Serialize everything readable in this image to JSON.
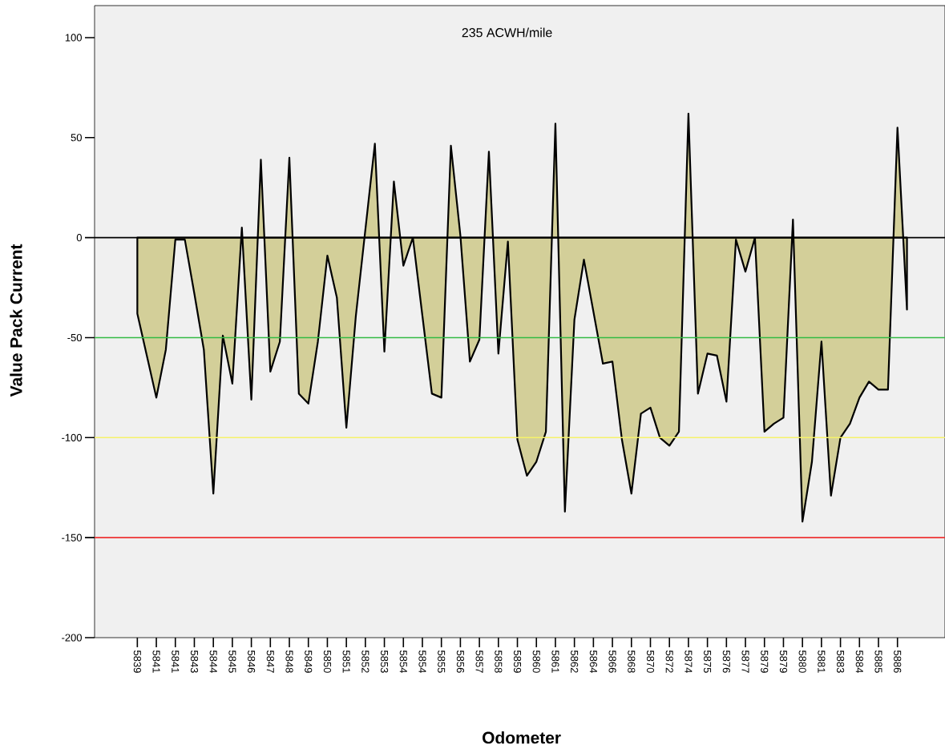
{
  "chart_data": {
    "type": "area",
    "title": "235 ACWH/mile",
    "xlabel": "Odometer",
    "ylabel": "Value Pack Current",
    "color": "#d3cf99",
    "categories": [
      "5839",
      null,
      "5841",
      null,
      "5841",
      null,
      "5843",
      null,
      "5844",
      null,
      "5845",
      null,
      "5846",
      null,
      "5847",
      null,
      "5848",
      null,
      "5849",
      null,
      "5850",
      null,
      "5851",
      null,
      "5852",
      null,
      "5853",
      null,
      "5854",
      null,
      "5854",
      null,
      "5855",
      null,
      "5856",
      null,
      "5857",
      null,
      "5858",
      null,
      "5859",
      null,
      "5860",
      null,
      "5861",
      null,
      "5862",
      null,
      "5864",
      null,
      "5866",
      null,
      "5868",
      null,
      "5870",
      null,
      "5872",
      null,
      "5874",
      null,
      "5875",
      null,
      "5876",
      null,
      "5877",
      null,
      "5879",
      null,
      "5879",
      null,
      "5880",
      null,
      "5881",
      null,
      "5883",
      null,
      "5884",
      null,
      "5885",
      null,
      "5886",
      null
    ],
    "values": [
      -38,
      -59,
      -80,
      -56,
      -1,
      -1,
      -28,
      -56,
      -128,
      -49,
      -73,
      5,
      -81,
      39,
      -67,
      -52,
      40,
      -78,
      -83,
      -52,
      -9,
      -30,
      -95,
      -39,
      4,
      47,
      -57,
      28,
      -14,
      0,
      -39,
      -78,
      -80,
      46,
      1,
      -62,
      -51,
      43,
      -58,
      -2,
      -101,
      -119,
      -112,
      -97,
      57,
      -137,
      -41,
      -11,
      -37,
      -63,
      -62,
      -101,
      -128,
      -88,
      -85,
      -100,
      -104,
      -97,
      62,
      -78,
      -58,
      -59,
      -82,
      -1,
      -17,
      0,
      -97,
      -93,
      -90,
      9,
      -142,
      -112,
      -52,
      -129,
      -100,
      -93,
      -80,
      -72,
      -76,
      -76,
      55,
      -36
    ],
    "ylim": [
      -200,
      116
    ],
    "yticks": [
      -200,
      -150,
      -100,
      -50,
      0,
      50,
      100
    ],
    "ref_lines": [
      {
        "axis": "y",
        "value": 0,
        "color": "#000000"
      },
      {
        "axis": "y",
        "value": -50,
        "color": "#33bb44"
      },
      {
        "axis": "y",
        "value": -100,
        "color": "#f5f26a"
      },
      {
        "axis": "y",
        "value": -150,
        "color": "#ee3333"
      }
    ]
  }
}
